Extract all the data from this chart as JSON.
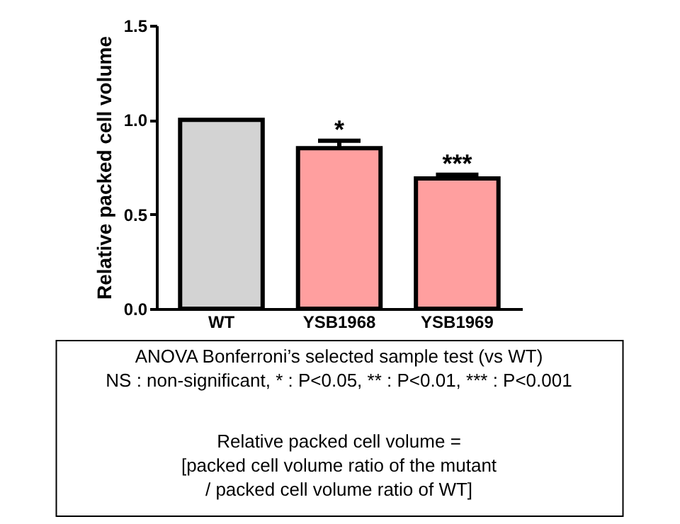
{
  "chart_data": {
    "type": "bar",
    "ylabel": "Relative packed cell volume",
    "categories": [
      "WT",
      "YSB1968",
      "YSB1969"
    ],
    "values": [
      1.0,
      0.85,
      0.69
    ],
    "colors": [
      "#d3d3d3",
      "#ff9f9f",
      "#ff9f9f"
    ],
    "errors": [
      null,
      0.04,
      0.02
    ],
    "ylim": [
      0,
      1.5
    ],
    "yticks": [
      {
        "value": 0,
        "label": "0.0"
      },
      {
        "value": 0.5,
        "label": "0.5"
      },
      {
        "value": 1,
        "label": "1.0"
      },
      {
        "value": 1.5,
        "label": "1.5"
      }
    ],
    "grid": false,
    "legend": false,
    "annotations": [
      {
        "text": "*",
        "x": "YSB1968",
        "y": 0.89
      },
      {
        "text": "***",
        "x": "YSB1969",
        "y": 0.71
      },
      "ANOVA Bonferroni’s selected sample test (vs WT)\nNS : non-significant, * : P<0.05, ** : P<0.01, *** : P<0.001",
      "Relative packed cell volume =\n[packed cell volume ratio of the mutant\n/ packed cell volume ratio of WT]"
    ]
  }
}
